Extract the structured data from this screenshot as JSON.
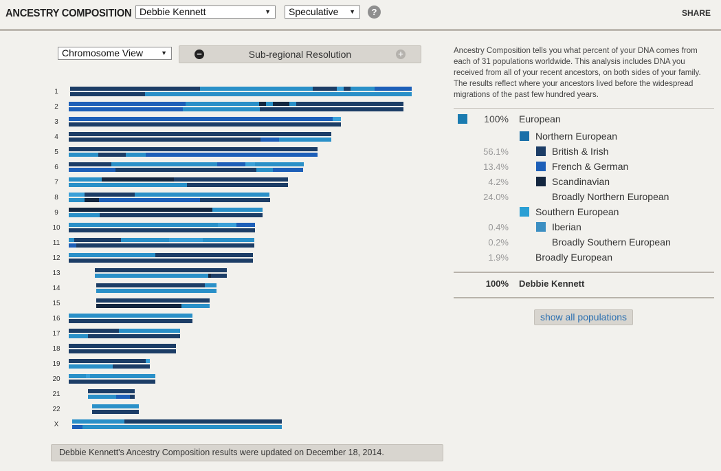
{
  "header": {
    "title": "ANCESTRY COMPOSITION",
    "person_selected": "Debbie Kennett",
    "mode_selected": "Speculative",
    "help_icon": "question-mark-icon",
    "share_label": "SHARE"
  },
  "controls": {
    "view_selected": "Chromosome View",
    "resolution_label": "Sub-regional Resolution",
    "minus_icon": "minus-circle-icon",
    "plus_icon": "plus-circle-icon"
  },
  "colors": {
    "european": "#1a7bb0",
    "northern_european": "#1a6fa8",
    "british_irish": "#1c3d66",
    "french_german": "#1d5fb8",
    "scandinavian": "#13263f",
    "southern_european": "#2a9fd4",
    "iberian": "#3c8fc2",
    "broadly_northern": "#2079c4"
  },
  "chromosomes": [
    {
      "label": "1"
    },
    {
      "label": "2"
    },
    {
      "label": "3"
    },
    {
      "label": "4"
    },
    {
      "label": "5"
    },
    {
      "label": "6"
    },
    {
      "label": "7"
    },
    {
      "label": "8"
    },
    {
      "label": "9"
    },
    {
      "label": "10"
    },
    {
      "label": "11"
    },
    {
      "label": "12"
    },
    {
      "label": "13"
    },
    {
      "label": "14"
    },
    {
      "label": "15"
    },
    {
      "label": "16"
    },
    {
      "label": "17"
    },
    {
      "label": "18"
    },
    {
      "label": "19"
    },
    {
      "label": "20"
    },
    {
      "label": "21"
    },
    {
      "label": "22"
    },
    {
      "label": "X"
    }
  ],
  "intro_text": "Ancestry Composition tells you what percent of your DNA comes from each of 31 populations worldwide. This analysis includes DNA you received from all of your recent ancestors, on both sides of your family. The results reflect where your ancestors lived before the widespread migrations of the past few hundred years.",
  "populations": [
    {
      "pct": "100%",
      "name": "European",
      "level": 0,
      "color": "#1a7bb0"
    },
    {
      "pct": "",
      "name": "Northern European",
      "level": 1,
      "color": "#1a6fa8"
    },
    {
      "pct": "56.1%",
      "name": "British & Irish",
      "level": 2,
      "color": "#1c3d66"
    },
    {
      "pct": "13.4%",
      "name": "French & German",
      "level": 2,
      "color": "#1d5fb8"
    },
    {
      "pct": "4.2%",
      "name": "Scandinavian",
      "level": 2,
      "color": "#13263f"
    },
    {
      "pct": "24.0%",
      "name": "Broadly Northern European",
      "level": 2,
      "color": ""
    },
    {
      "pct": "",
      "name": "Southern European",
      "level": 1,
      "color": "#2a9fd4"
    },
    {
      "pct": "0.4%",
      "name": "Iberian",
      "level": 2,
      "color": "#3c8fc2"
    },
    {
      "pct": "0.2%",
      "name": "Broadly Southern European",
      "level": 2,
      "color": ""
    },
    {
      "pct": "1.9%",
      "name": "Broadly European",
      "level": 1,
      "color": ""
    }
  ],
  "total": {
    "pct": "100%",
    "name": "Debbie Kennett"
  },
  "show_all_label": "show all populations",
  "update_notice": "Debbie Kennett's Ancestry Composition results were updated on December 18, 2014."
}
